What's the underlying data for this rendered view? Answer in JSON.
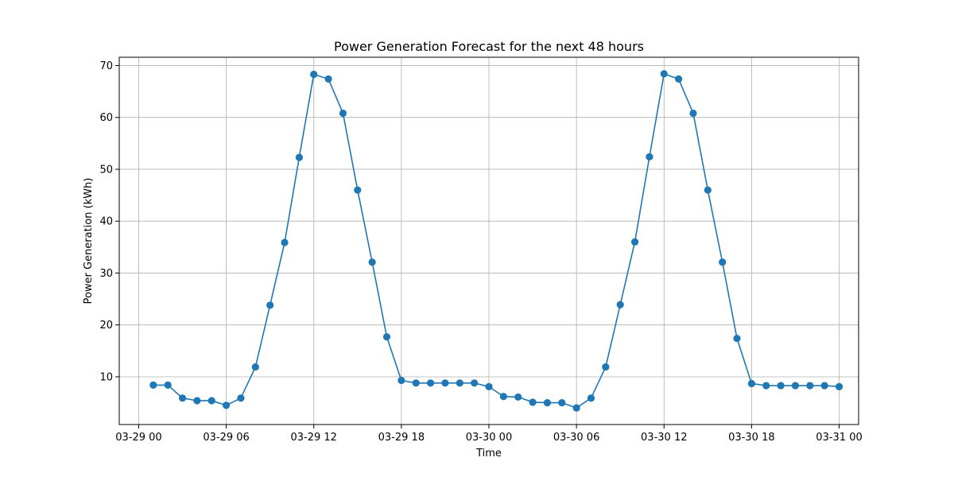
{
  "chart_data": {
    "type": "line",
    "title": "Power Generation Forecast for the next 48 hours",
    "xlabel": "Time",
    "ylabel": "Power Generation (kWh)",
    "x_tick_labels": [
      "03-29 00",
      "03-29 06",
      "03-29 12",
      "03-29 18",
      "03-30 00",
      "03-30 06",
      "03-30 12",
      "03-30 18",
      "03-31 00"
    ],
    "y_ticks": [
      10,
      20,
      30,
      40,
      50,
      60,
      70
    ],
    "ylim": [
      0.8,
      71.6
    ],
    "xlim": [
      "2024-03-28 22:40",
      "2024-03-31 01:20"
    ],
    "grid": true,
    "color": "#1f77b4",
    "series": [
      {
        "x": [
          "2024-03-29 01:00",
          "2024-03-29 02:00",
          "2024-03-29 03:00",
          "2024-03-29 04:00",
          "2024-03-29 05:00",
          "2024-03-29 06:00",
          "2024-03-29 07:00",
          "2024-03-29 08:00",
          "2024-03-29 09:00",
          "2024-03-29 10:00",
          "2024-03-29 11:00",
          "2024-03-29 12:00",
          "2024-03-29 13:00",
          "2024-03-29 14:00",
          "2024-03-29 15:00",
          "2024-03-29 16:00",
          "2024-03-29 17:00",
          "2024-03-29 18:00",
          "2024-03-29 19:00",
          "2024-03-29 20:00",
          "2024-03-29 21:00",
          "2024-03-29 22:00",
          "2024-03-29 23:00",
          "2024-03-30 00:00",
          "2024-03-30 01:00",
          "2024-03-30 02:00",
          "2024-03-30 03:00",
          "2024-03-30 04:00",
          "2024-03-30 05:00",
          "2024-03-30 06:00",
          "2024-03-30 07:00",
          "2024-03-30 08:00",
          "2024-03-30 09:00",
          "2024-03-30 10:00",
          "2024-03-30 11:00",
          "2024-03-30 12:00",
          "2024-03-30 13:00",
          "2024-03-30 14:00",
          "2024-03-30 15:00",
          "2024-03-30 16:00",
          "2024-03-30 17:00",
          "2024-03-30 18:00",
          "2024-03-30 19:00",
          "2024-03-30 20:00",
          "2024-03-30 21:00",
          "2024-03-30 22:00",
          "2024-03-30 23:00",
          "2024-03-31 00:00"
        ],
        "values": [
          8.4,
          8.4,
          5.9,
          5.4,
          5.4,
          4.5,
          5.9,
          11.9,
          23.8,
          35.9,
          52.3,
          68.3,
          67.4,
          60.8,
          46.0,
          32.1,
          17.7,
          9.3,
          8.8,
          8.8,
          8.8,
          8.8,
          8.8,
          8.1,
          6.2,
          6.1,
          5.1,
          5.0,
          5.0,
          4.0,
          5.9,
          11.9,
          23.9,
          36.0,
          52.4,
          68.4,
          67.4,
          60.8,
          46.0,
          32.1,
          17.4,
          8.7,
          8.3,
          8.3,
          8.3,
          8.3,
          8.3,
          8.1
        ]
      }
    ]
  }
}
